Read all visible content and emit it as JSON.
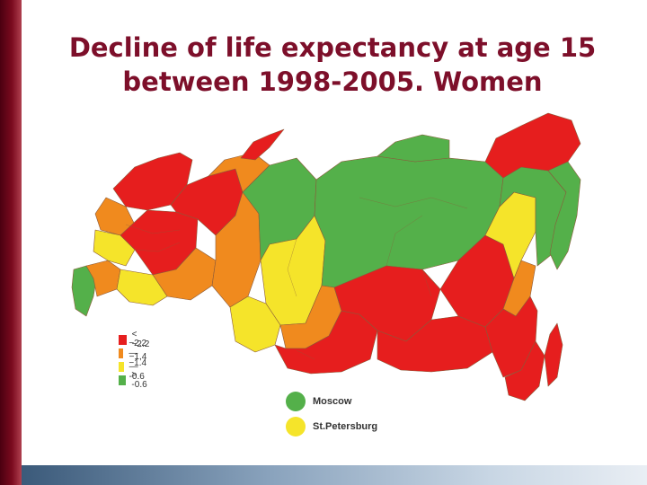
{
  "title": {
    "line1": "Decline of life expectancy at age 15",
    "line2": "between 1998-2005. Women"
  },
  "legend": [
    {
      "label": "< −2.2",
      "color": "#e61e1e"
    },
    {
      "label": "−2,2— −1.4",
      "color": "#f08a1e"
    },
    {
      "label": "−1,4— -0.6",
      "color": "#f5e42a"
    },
    {
      "label": "> -0.6",
      "color": "#54b04a"
    }
  ],
  "cities": [
    {
      "label": "Moscow",
      "color": "#54b04a"
    },
    {
      "label": "St.Petersburg",
      "color": "#f5e42a"
    }
  ],
  "colors": {
    "red": "#e61e1e",
    "orange": "#f08a1e",
    "yellow": "#f5e42a",
    "green": "#54b04a",
    "title": "#7d0f2a"
  }
}
